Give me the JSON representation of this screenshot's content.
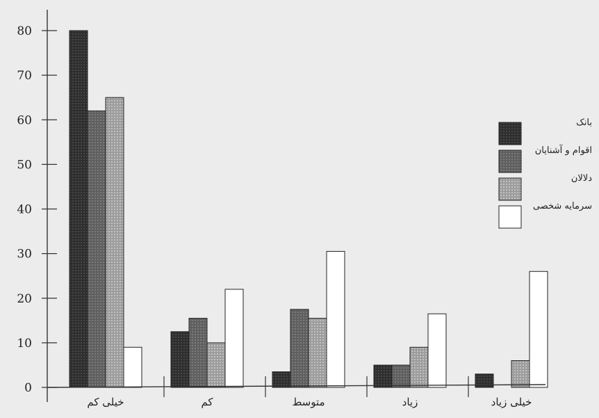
{
  "chart_data": {
    "type": "bar",
    "title": "",
    "xlabel": "",
    "ylabel": "",
    "ylim": [
      0,
      80
    ],
    "yticks": [
      0,
      10,
      20,
      30,
      40,
      50,
      60,
      70,
      80
    ],
    "grid": false,
    "legend_position": "right",
    "categories": [
      "خیلی کم",
      "کم",
      "متوسط",
      "زیاد",
      "خیلی زیاد"
    ],
    "series": [
      {
        "name": "بانک",
        "values": [
          80,
          12.5,
          3.5,
          5,
          3
        ]
      },
      {
        "name": "اقوام و آشنایان",
        "values": [
          62,
          15.5,
          17.5,
          5,
          0
        ]
      },
      {
        "name": "دلالان",
        "values": [
          65,
          10,
          15.5,
          9,
          6
        ]
      },
      {
        "name": "سرمایه شخصی",
        "values": [
          9,
          22,
          30.5,
          16.5,
          26
        ]
      }
    ]
  },
  "colors": {
    "background": "#ececec",
    "axis": "#333333",
    "series": [
      "#2e2e2e",
      "#5f5f5f",
      "#9a9a9a",
      "#ffffff"
    ]
  }
}
